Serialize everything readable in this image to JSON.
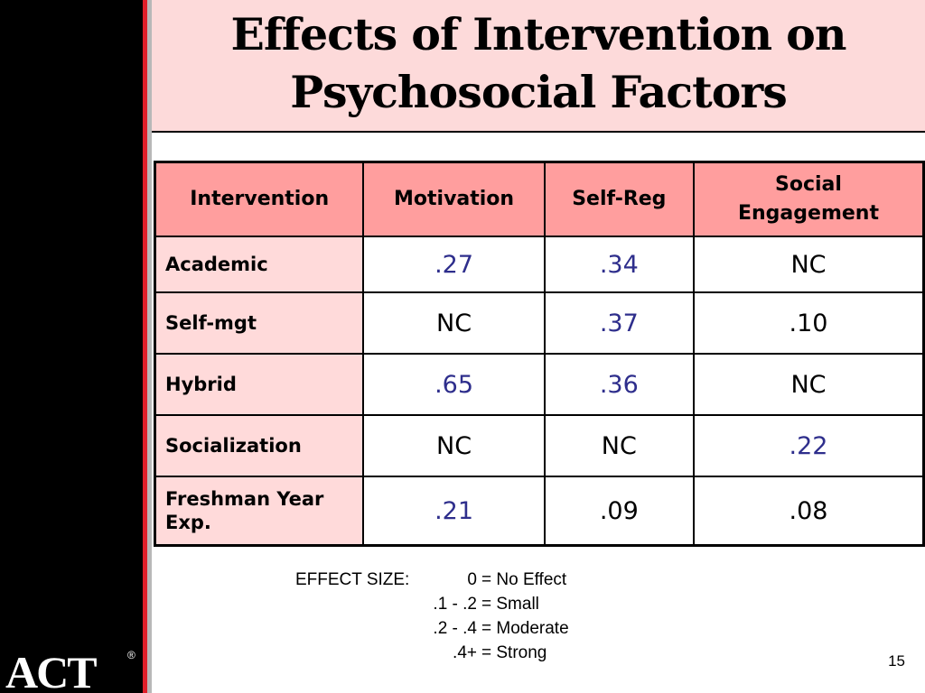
{
  "slide": {
    "title_line1": "Effects of Intervention on",
    "title_line2": "Psychosocial Factors",
    "page_number": "15",
    "logo_text": "ACT",
    "logo_mark": "®"
  },
  "table": {
    "headers": [
      "Intervention",
      "Motivation",
      "Self-Reg",
      "Social Engagement"
    ],
    "rows": [
      {
        "label": "Academic",
        "values": [
          ".27",
          ".34",
          "NC"
        ],
        "highlight": [
          true,
          true,
          false
        ]
      },
      {
        "label": "Self-mgt",
        "values": [
          "NC",
          ".37",
          ".10"
        ],
        "highlight": [
          false,
          true,
          false
        ]
      },
      {
        "label": "Hybrid",
        "values": [
          ".65",
          ".36",
          "NC"
        ],
        "highlight": [
          true,
          true,
          false
        ]
      },
      {
        "label": "Socialization",
        "values": [
          "NC",
          "NC",
          ".22"
        ],
        "highlight": [
          false,
          false,
          true
        ]
      },
      {
        "label": "Freshman Year Exp.",
        "values": [
          ".21",
          ".09",
          ".08"
        ],
        "highlight": [
          true,
          false,
          false
        ]
      }
    ]
  },
  "legend": {
    "heading": "EFFECT SIZE:",
    "items": [
      {
        "range": "0",
        "desc": "= No Effect"
      },
      {
        "range": ".1 - .2",
        "desc": "= Small"
      },
      {
        "range": ".2 - .4",
        "desc": "= Moderate"
      },
      {
        "range": ".4+",
        "desc": "= Strong"
      }
    ]
  },
  "colors": {
    "header_fill": "#ff9e9e",
    "row_label_fill": "#ffdada",
    "title_band": "#fddada",
    "highlight_value": "#2e2e8c",
    "accent_red": "#e0202a"
  }
}
